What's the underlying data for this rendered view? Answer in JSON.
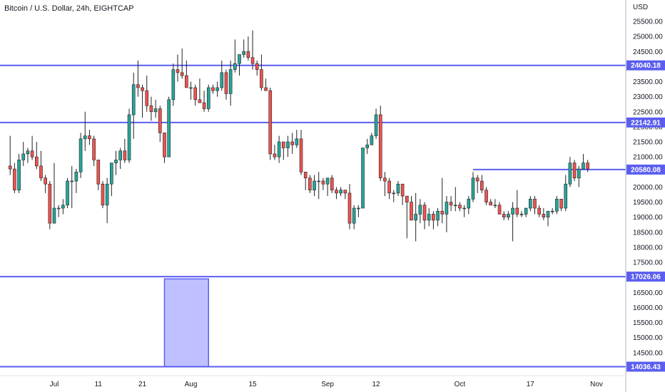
{
  "title": "Bitcoin / U.S. Dollar, 24h, EIGHTCAP",
  "currency_label": "USD",
  "colors": {
    "up": "#26a69a",
    "down": "#ef5350",
    "level_line": "#5b5ef0",
    "zone_fill": "#bfc0ff",
    "axis_text": "#131722",
    "axis_line": "#b2b5be"
  },
  "chart_data": {
    "type": "candlestick",
    "title": "Bitcoin / U.S. Dollar, 24h, EIGHTCAP",
    "ylim": [
      13900,
      25900
    ],
    "y_ticks": [
      25500,
      25000,
      24500,
      24000,
      23500,
      23000,
      22500,
      22000,
      21500,
      21000,
      20500,
      20000,
      19500,
      19000,
      18500,
      18000,
      17500,
      17000,
      16500,
      16000,
      15500,
      15000,
      14500,
      14000
    ],
    "y_tick_labels": [
      "25500.00",
      "25000.00",
      "24500.00",
      "24000.00",
      "23500.00",
      "23000.00",
      "22500.00",
      "22000.00",
      "21500.00",
      "21000.00",
      "20500.00",
      "20000.00",
      "19500.00",
      "19000.00",
      "18500.00",
      "18000.00",
      "17500.00",
      "17000.00",
      "16500.00",
      "16000.00",
      "15500.00",
      "15000.00",
      "14500.00",
      "14000.00"
    ],
    "x_ticks": [
      {
        "date": "2022-07-01",
        "label": "Jul"
      },
      {
        "date": "2022-07-11",
        "label": "11"
      },
      {
        "date": "2022-07-21",
        "label": "21"
      },
      {
        "date": "2022-08-01",
        "label": "Aug"
      },
      {
        "date": "2022-08-15",
        "label": "15"
      },
      {
        "date": "2022-09-01",
        "label": "Sep"
      },
      {
        "date": "2022-09-12",
        "label": "12"
      },
      {
        "date": "2022-10-01",
        "label": "Oct"
      },
      {
        "date": "2022-10-17",
        "label": "17"
      },
      {
        "date": "2022-11-01",
        "label": "Nov"
      }
    ],
    "horizontal_levels": [
      {
        "value": 24040.18,
        "label": "24040.18",
        "from_date": null
      },
      {
        "value": 22142.91,
        "label": "22142.91",
        "from_date": null
      },
      {
        "value": 20580.08,
        "label": "20580.08",
        "from_date": "2022-10-04"
      },
      {
        "value": 17026.06,
        "label": "17026.06",
        "from_date": null
      },
      {
        "value": 14036.43,
        "label": "14036.43",
        "from_date": null
      }
    ],
    "zone": {
      "from_date": "2022-07-26",
      "to_date": "2022-08-05",
      "top": 16950,
      "bottom": 14036.43
    },
    "candles": [
      {
        "date": "2022-06-21",
        "o": 20700,
        "h": 21700,
        "l": 20400,
        "c": 20600
      },
      {
        "date": "2022-06-22",
        "o": 20600,
        "h": 20800,
        "l": 19800,
        "c": 19900
      },
      {
        "date": "2022-06-23",
        "o": 19900,
        "h": 21100,
        "l": 19800,
        "c": 20900
      },
      {
        "date": "2022-06-24",
        "o": 20900,
        "h": 21500,
        "l": 20700,
        "c": 21100
      },
      {
        "date": "2022-06-25",
        "o": 21100,
        "h": 21300,
        "l": 20800,
        "c": 21200
      },
      {
        "date": "2022-06-26",
        "o": 21200,
        "h": 21700,
        "l": 20900,
        "c": 21000
      },
      {
        "date": "2022-06-27",
        "o": 21000,
        "h": 21500,
        "l": 20600,
        "c": 20700
      },
      {
        "date": "2022-06-28",
        "o": 20700,
        "h": 21200,
        "l": 20200,
        "c": 20300
      },
      {
        "date": "2022-06-29",
        "o": 20300,
        "h": 20400,
        "l": 19800,
        "c": 20100
      },
      {
        "date": "2022-06-30",
        "o": 20100,
        "h": 20200,
        "l": 18600,
        "c": 18800
      },
      {
        "date": "2022-07-01",
        "o": 18800,
        "h": 20800,
        "l": 18800,
        "c": 19300
      },
      {
        "date": "2022-07-02",
        "o": 19300,
        "h": 19400,
        "l": 19000,
        "c": 19300
      },
      {
        "date": "2022-07-03",
        "o": 19300,
        "h": 19600,
        "l": 19100,
        "c": 19400
      },
      {
        "date": "2022-07-04",
        "o": 19400,
        "h": 20300,
        "l": 19300,
        "c": 20200
      },
      {
        "date": "2022-07-05",
        "o": 20200,
        "h": 20700,
        "l": 19300,
        "c": 20200
      },
      {
        "date": "2022-07-06",
        "o": 20200,
        "h": 20600,
        "l": 19800,
        "c": 20500
      },
      {
        "date": "2022-07-07",
        "o": 20500,
        "h": 21800,
        "l": 20300,
        "c": 21600
      },
      {
        "date": "2022-07-08",
        "o": 21600,
        "h": 22500,
        "l": 21200,
        "c": 21700
      },
      {
        "date": "2022-07-09",
        "o": 21700,
        "h": 21900,
        "l": 21400,
        "c": 21600
      },
      {
        "date": "2022-07-10",
        "o": 21600,
        "h": 21700,
        "l": 20700,
        "c": 20900
      },
      {
        "date": "2022-07-11",
        "o": 20900,
        "h": 20900,
        "l": 19900,
        "c": 20100
      },
      {
        "date": "2022-07-12",
        "o": 20100,
        "h": 20200,
        "l": 19300,
        "c": 19400
      },
      {
        "date": "2022-07-13",
        "o": 19400,
        "h": 20300,
        "l": 18800,
        "c": 20100
      },
      {
        "date": "2022-07-14",
        "o": 20100,
        "h": 20800,
        "l": 19700,
        "c": 20800
      },
      {
        "date": "2022-07-15",
        "o": 20800,
        "h": 21200,
        "l": 20400,
        "c": 20900
      },
      {
        "date": "2022-07-16",
        "o": 20900,
        "h": 21300,
        "l": 20600,
        "c": 21200
      },
      {
        "date": "2022-07-17",
        "o": 21200,
        "h": 21600,
        "l": 20800,
        "c": 20900
      },
      {
        "date": "2022-07-18",
        "o": 20900,
        "h": 22600,
        "l": 20800,
        "c": 22400
      },
      {
        "date": "2022-07-19",
        "o": 22400,
        "h": 23800,
        "l": 21600,
        "c": 23400
      },
      {
        "date": "2022-07-20",
        "o": 23400,
        "h": 24200,
        "l": 23000,
        "c": 23300
      },
      {
        "date": "2022-07-21",
        "o": 23300,
        "h": 23400,
        "l": 22300,
        "c": 23200
      },
      {
        "date": "2022-07-22",
        "o": 23200,
        "h": 23700,
        "l": 22500,
        "c": 22700
      },
      {
        "date": "2022-07-23",
        "o": 22700,
        "h": 23000,
        "l": 22200,
        "c": 22500
      },
      {
        "date": "2022-07-24",
        "o": 22500,
        "h": 22900,
        "l": 22300,
        "c": 22600
      },
      {
        "date": "2022-07-25",
        "o": 22600,
        "h": 22700,
        "l": 21500,
        "c": 21800
      },
      {
        "date": "2022-07-26",
        "o": 21800,
        "h": 21800,
        "l": 20800,
        "c": 21000
      },
      {
        "date": "2022-07-27",
        "o": 21000,
        "h": 23000,
        "l": 21000,
        "c": 22900
      },
      {
        "date": "2022-07-28",
        "o": 22900,
        "h": 24100,
        "l": 22700,
        "c": 23900
      },
      {
        "date": "2022-07-29",
        "o": 23900,
        "h": 24400,
        "l": 23500,
        "c": 23800
      },
      {
        "date": "2022-07-30",
        "o": 23800,
        "h": 24600,
        "l": 23600,
        "c": 23700
      },
      {
        "date": "2022-07-31",
        "o": 23700,
        "h": 24200,
        "l": 23300,
        "c": 23300
      },
      {
        "date": "2022-08-01",
        "o": 23300,
        "h": 23500,
        "l": 22900,
        "c": 23300
      },
      {
        "date": "2022-08-02",
        "o": 23300,
        "h": 23400,
        "l": 22700,
        "c": 22900
      },
      {
        "date": "2022-08-03",
        "o": 22900,
        "h": 23600,
        "l": 22800,
        "c": 22800
      },
      {
        "date": "2022-08-04",
        "o": 22800,
        "h": 23200,
        "l": 22500,
        "c": 22600
      },
      {
        "date": "2022-08-05",
        "o": 22600,
        "h": 23400,
        "l": 22500,
        "c": 23300
      },
      {
        "date": "2022-08-06",
        "o": 23300,
        "h": 23400,
        "l": 23100,
        "c": 23200
      },
      {
        "date": "2022-08-07",
        "o": 23200,
        "h": 23500,
        "l": 23000,
        "c": 23300
      },
      {
        "date": "2022-08-08",
        "o": 23300,
        "h": 24200,
        "l": 23200,
        "c": 23800
      },
      {
        "date": "2022-08-09",
        "o": 23800,
        "h": 23900,
        "l": 22900,
        "c": 23100
      },
      {
        "date": "2022-08-10",
        "o": 23100,
        "h": 24200,
        "l": 22700,
        "c": 23900
      },
      {
        "date": "2022-08-11",
        "o": 23900,
        "h": 24900,
        "l": 23800,
        "c": 24100
      },
      {
        "date": "2022-08-12",
        "o": 24100,
        "h": 24400,
        "l": 23700,
        "c": 24400
      },
      {
        "date": "2022-08-13",
        "o": 24400,
        "h": 24900,
        "l": 24300,
        "c": 24500
      },
      {
        "date": "2022-08-14",
        "o": 24500,
        "h": 25000,
        "l": 24200,
        "c": 24300
      },
      {
        "date": "2022-08-15",
        "o": 24300,
        "h": 25200,
        "l": 23900,
        "c": 24100
      },
      {
        "date": "2022-08-16",
        "o": 24100,
        "h": 24200,
        "l": 23700,
        "c": 23900
      },
      {
        "date": "2022-08-17",
        "o": 23900,
        "h": 24400,
        "l": 23200,
        "c": 23300
      },
      {
        "date": "2022-08-18",
        "o": 23300,
        "h": 23600,
        "l": 23200,
        "c": 23200
      },
      {
        "date": "2022-08-19",
        "o": 23200,
        "h": 23300,
        "l": 20900,
        "c": 21100
      },
      {
        "date": "2022-08-20",
        "o": 21100,
        "h": 21400,
        "l": 20900,
        "c": 21000
      },
      {
        "date": "2022-08-21",
        "o": 21000,
        "h": 21700,
        "l": 20800,
        "c": 21500
      },
      {
        "date": "2022-08-22",
        "o": 21500,
        "h": 21500,
        "l": 20900,
        "c": 21300
      },
      {
        "date": "2022-08-23",
        "o": 21300,
        "h": 21700,
        "l": 21000,
        "c": 21500
      },
      {
        "date": "2022-08-24",
        "o": 21500,
        "h": 21800,
        "l": 21100,
        "c": 21400
      },
      {
        "date": "2022-08-25",
        "o": 21400,
        "h": 21900,
        "l": 21300,
        "c": 21600
      },
      {
        "date": "2022-08-26",
        "o": 21600,
        "h": 21900,
        "l": 20400,
        "c": 20500
      },
      {
        "date": "2022-08-27",
        "o": 20500,
        "h": 20500,
        "l": 19900,
        "c": 20300
      },
      {
        "date": "2022-08-28",
        "o": 20300,
        "h": 20400,
        "l": 19800,
        "c": 19900
      },
      {
        "date": "2022-08-29",
        "o": 19900,
        "h": 20400,
        "l": 19700,
        "c": 20200
      },
      {
        "date": "2022-08-30",
        "o": 20200,
        "h": 20500,
        "l": 19600,
        "c": 20200
      },
      {
        "date": "2022-08-31",
        "o": 20200,
        "h": 20300,
        "l": 19900,
        "c": 20100
      },
      {
        "date": "2022-09-01",
        "o": 20100,
        "h": 20300,
        "l": 19700,
        "c": 20300
      },
      {
        "date": "2022-09-02",
        "o": 20300,
        "h": 20400,
        "l": 19800,
        "c": 19900
      },
      {
        "date": "2022-09-03",
        "o": 19900,
        "h": 20000,
        "l": 19600,
        "c": 19800
      },
      {
        "date": "2022-09-04",
        "o": 19800,
        "h": 20000,
        "l": 19700,
        "c": 19900
      },
      {
        "date": "2022-09-05",
        "o": 19900,
        "h": 19900,
        "l": 19600,
        "c": 19800
      },
      {
        "date": "2022-09-06",
        "o": 19800,
        "h": 20100,
        "l": 18600,
        "c": 18800
      },
      {
        "date": "2022-09-07",
        "o": 18800,
        "h": 19400,
        "l": 18600,
        "c": 19300
      },
      {
        "date": "2022-09-08",
        "o": 19300,
        "h": 19400,
        "l": 19000,
        "c": 19300
      },
      {
        "date": "2022-09-09",
        "o": 19300,
        "h": 21300,
        "l": 19300,
        "c": 21300
      },
      {
        "date": "2022-09-10",
        "o": 21300,
        "h": 21600,
        "l": 21100,
        "c": 21400
      },
      {
        "date": "2022-09-11",
        "o": 21400,
        "h": 21800,
        "l": 21400,
        "c": 21700
      },
      {
        "date": "2022-09-12",
        "o": 21700,
        "h": 22600,
        "l": 21600,
        "c": 22400
      },
      {
        "date": "2022-09-13",
        "o": 22400,
        "h": 22700,
        "l": 20200,
        "c": 20300
      },
      {
        "date": "2022-09-14",
        "o": 20300,
        "h": 20500,
        "l": 19700,
        "c": 20200
      },
      {
        "date": "2022-09-15",
        "o": 20200,
        "h": 20300,
        "l": 19600,
        "c": 19800
      },
      {
        "date": "2022-09-16",
        "o": 19800,
        "h": 19900,
        "l": 19500,
        "c": 19800
      },
      {
        "date": "2022-09-17",
        "o": 19800,
        "h": 20200,
        "l": 19700,
        "c": 20100
      },
      {
        "date": "2022-09-18",
        "o": 20100,
        "h": 20100,
        "l": 19400,
        "c": 19700
      },
      {
        "date": "2022-09-19",
        "o": 19700,
        "h": 19700,
        "l": 18300,
        "c": 19500
      },
      {
        "date": "2022-09-20",
        "o": 19500,
        "h": 19700,
        "l": 18900,
        "c": 18900
      },
      {
        "date": "2022-09-21",
        "o": 18900,
        "h": 19800,
        "l": 18200,
        "c": 19100
      },
      {
        "date": "2022-09-22",
        "o": 19100,
        "h": 19600,
        "l": 18800,
        "c": 19400
      },
      {
        "date": "2022-09-23",
        "o": 19400,
        "h": 19500,
        "l": 18600,
        "c": 18900
      },
      {
        "date": "2022-09-24",
        "o": 18900,
        "h": 19300,
        "l": 18700,
        "c": 19100
      },
      {
        "date": "2022-09-25",
        "o": 19100,
        "h": 19200,
        "l": 18600,
        "c": 18900
      },
      {
        "date": "2022-09-26",
        "o": 18900,
        "h": 19300,
        "l": 18700,
        "c": 19200
      },
      {
        "date": "2022-09-27",
        "o": 19200,
        "h": 20300,
        "l": 18800,
        "c": 19100
      },
      {
        "date": "2022-09-28",
        "o": 19100,
        "h": 19700,
        "l": 18500,
        "c": 19500
      },
      {
        "date": "2022-09-29",
        "o": 19500,
        "h": 19700,
        "l": 19200,
        "c": 19400
      },
      {
        "date": "2022-09-30",
        "o": 19400,
        "h": 20000,
        "l": 19200,
        "c": 19400
      },
      {
        "date": "2022-10-01",
        "o": 19400,
        "h": 19500,
        "l": 19200,
        "c": 19300
      },
      {
        "date": "2022-10-02",
        "o": 19300,
        "h": 19400,
        "l": 19000,
        "c": 19300
      },
      {
        "date": "2022-10-03",
        "o": 19300,
        "h": 19700,
        "l": 19100,
        "c": 19600
      },
      {
        "date": "2022-10-04",
        "o": 19600,
        "h": 20500,
        "l": 19500,
        "c": 20300
      },
      {
        "date": "2022-10-05",
        "o": 20300,
        "h": 20400,
        "l": 19800,
        "c": 20200
      },
      {
        "date": "2022-10-06",
        "o": 20200,
        "h": 20400,
        "l": 19800,
        "c": 19900
      },
      {
        "date": "2022-10-07",
        "o": 19900,
        "h": 20000,
        "l": 19400,
        "c": 19500
      },
      {
        "date": "2022-10-08",
        "o": 19500,
        "h": 19600,
        "l": 19400,
        "c": 19400
      },
      {
        "date": "2022-10-09",
        "o": 19400,
        "h": 19600,
        "l": 19300,
        "c": 19400
      },
      {
        "date": "2022-10-10",
        "o": 19400,
        "h": 19500,
        "l": 19100,
        "c": 19100
      },
      {
        "date": "2022-10-11",
        "o": 19100,
        "h": 19200,
        "l": 18900,
        "c": 19000
      },
      {
        "date": "2022-10-12",
        "o": 19000,
        "h": 19200,
        "l": 18900,
        "c": 19100
      },
      {
        "date": "2022-10-13",
        "o": 19100,
        "h": 19500,
        "l": 18200,
        "c": 19300
      },
      {
        "date": "2022-10-14",
        "o": 19300,
        "h": 19900,
        "l": 19000,
        "c": 19100
      },
      {
        "date": "2022-10-15",
        "o": 19100,
        "h": 19200,
        "l": 19000,
        "c": 19100
      },
      {
        "date": "2022-10-16",
        "o": 19100,
        "h": 19300,
        "l": 19000,
        "c": 19300
      },
      {
        "date": "2022-10-17",
        "o": 19300,
        "h": 19700,
        "l": 19200,
        "c": 19600
      },
      {
        "date": "2022-10-18",
        "o": 19600,
        "h": 19700,
        "l": 19100,
        "c": 19300
      },
      {
        "date": "2022-10-19",
        "o": 19300,
        "h": 19400,
        "l": 19000,
        "c": 19100
      },
      {
        "date": "2022-10-20",
        "o": 19100,
        "h": 19300,
        "l": 18900,
        "c": 19000
      },
      {
        "date": "2022-10-21",
        "o": 19000,
        "h": 19200,
        "l": 18700,
        "c": 19200
      },
      {
        "date": "2022-10-22",
        "o": 19200,
        "h": 19300,
        "l": 19100,
        "c": 19200
      },
      {
        "date": "2022-10-23",
        "o": 19200,
        "h": 19700,
        "l": 19100,
        "c": 19600
      },
      {
        "date": "2022-10-24",
        "o": 19600,
        "h": 19600,
        "l": 19200,
        "c": 19300
      },
      {
        "date": "2022-10-25",
        "o": 19300,
        "h": 20400,
        "l": 19200,
        "c": 20100
      },
      {
        "date": "2022-10-26",
        "o": 20100,
        "h": 21000,
        "l": 20000,
        "c": 20800
      },
      {
        "date": "2022-10-27",
        "o": 20800,
        "h": 20900,
        "l": 20200,
        "c": 20300
      },
      {
        "date": "2022-10-28",
        "o": 20300,
        "h": 20700,
        "l": 20000,
        "c": 20600
      },
      {
        "date": "2022-10-29",
        "o": 20600,
        "h": 21100,
        "l": 20600,
        "c": 20800
      },
      {
        "date": "2022-10-30",
        "o": 20800,
        "h": 20900,
        "l": 20500,
        "c": 20600
      }
    ]
  }
}
